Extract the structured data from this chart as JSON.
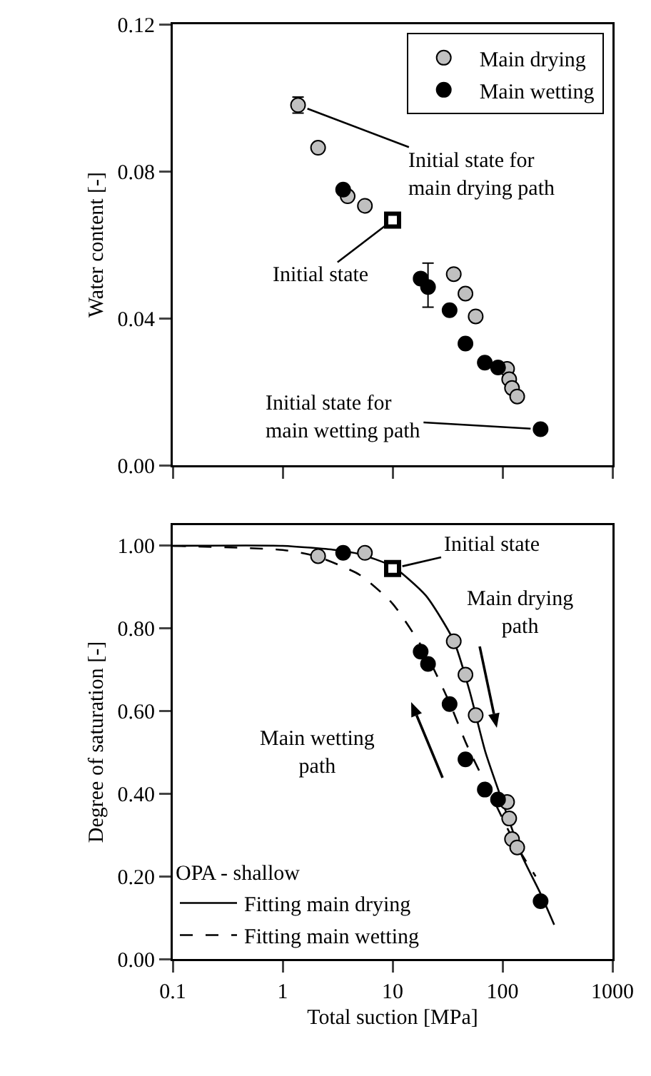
{
  "chart_data": [
    {
      "type": "scatter",
      "ylabel": "Water content [-]",
      "log": "x",
      "xlim": [
        0.1,
        1000
      ],
      "xticks": [
        0.1,
        1,
        10,
        100,
        1000
      ],
      "ylim": [
        0,
        0.12
      ],
      "yticks": [
        {
          "value": 0,
          "label": "0.00"
        },
        {
          "value": 0.04,
          "label": "0.04"
        },
        {
          "value": 0.08,
          "label": "0.08"
        },
        {
          "value": 0.12,
          "label": "0.12"
        }
      ],
      "tick_labels": "y",
      "grid": false,
      "legend": "top right",
      "marker": "circle",
      "series": [
        {
          "name": "Main drying",
          "color": "#c0c0c0",
          "x": [
            1.38,
            2.1,
            3.9,
            5.6,
            36,
            46,
            57,
            110,
            115,
            122,
            136
          ],
          "values": [
            0.098,
            0.0864,
            0.0732,
            0.0706,
            0.052,
            0.0467,
            0.0405,
            0.0262,
            0.0234,
            0.021,
            0.0187
          ],
          "errors": [
            0.0022,
            null,
            null,
            null,
            null,
            null,
            null,
            null,
            null,
            null,
            null
          ]
        },
        {
          "name": "Main wetting",
          "color": "#000000",
          "x": [
            3.55,
            18,
            21,
            33,
            46,
            69,
            91,
            222
          ],
          "values": [
            0.075,
            0.0508,
            0.0485,
            0.0422,
            0.0331,
            0.0279,
            0.0266,
            0.0098
          ],
          "errors": [
            null,
            null,
            [
              0.043,
              0.055
            ],
            null,
            null,
            null,
            null,
            null
          ]
        },
        {
          "color": "#000000",
          "marker": "square",
          "x": [
            10
          ],
          "values": [
            0.0667
          ]
        }
      ],
      "annotations": [
        {
          "text": "Initial state for\nmain drying path",
          "x": 1.38,
          "y": 0.098
        },
        {
          "text": "Initial state",
          "x": 10,
          "y": 0.0667
        },
        {
          "text": "Initial state for\nmain wetting path",
          "x": 222,
          "y": 0.0098
        }
      ]
    },
    {
      "type": "scatter",
      "xlabel": "Total suction [MPa]",
      "ylabel": "Degree of saturation [-]",
      "log": "x",
      "xlim": [
        0.1,
        1000
      ],
      "xticks": [
        0.1,
        1,
        10,
        100,
        1000
      ],
      "ylim": [
        0,
        1.05
      ],
      "yticks": [
        {
          "value": 0,
          "label": "0.00"
        },
        {
          "value": 0.2,
          "label": "0.20"
        },
        {
          "value": 0.4,
          "label": "0.40"
        },
        {
          "value": 0.6,
          "label": "0.60"
        },
        {
          "value": 0.8,
          "label": "0.80"
        },
        {
          "value": 1,
          "label": "1.00"
        }
      ],
      "grid": false,
      "legend": "bottom left",
      "legend_title": "OPA - shallow",
      "marker": "circle",
      "series": [
        {
          "color": "#c0c0c0",
          "x": [
            2.1,
            5.6,
            36,
            46,
            57,
            110,
            115,
            122,
            136
          ],
          "values": [
            0.975,
            0.983,
            0.769,
            0.688,
            0.59,
            0.38,
            0.34,
            0.29,
            0.27
          ]
        },
        {
          "color": "#000000",
          "x": [
            3.55,
            18,
            21,
            33,
            46,
            69,
            91,
            222
          ],
          "values": [
            0.983,
            0.744,
            0.714,
            0.617,
            0.483,
            0.41,
            0.386,
            0.14
          ]
        },
        {
          "color": "#000000",
          "marker": "square",
          "x": [
            10
          ],
          "values": [
            0.945
          ]
        },
        {
          "type": "line",
          "name": "Fitting main drying",
          "color": "#000000",
          "line_style": "solid",
          "marker": "none",
          "x": [
            0.1,
            1,
            3,
            5,
            10,
            20,
            36,
            50,
            70,
            100,
            150,
            220,
            295
          ],
          "values": [
            1.0,
            1.0,
            0.99,
            0.98,
            0.95,
            0.88,
            0.77,
            0.65,
            0.5,
            0.38,
            0.25,
            0.16,
            0.083
          ]
        },
        {
          "type": "line",
          "name": "Fitting main wetting",
          "color": "#000000",
          "line_style": "dashed",
          "marker": "none",
          "x": [
            0.1,
            1,
            2,
            5,
            10,
            20,
            33,
            47,
            86,
            130,
            200
          ],
          "values": [
            1.0,
            0.99,
            0.975,
            0.93,
            0.86,
            0.74,
            0.62,
            0.52,
            0.376,
            0.28,
            0.2
          ]
        }
      ],
      "annotations": [
        {
          "text": "Initial state",
          "x": 10,
          "y": 0.945
        },
        "Main drying\npath",
        "Main wetting\npath"
      ]
    }
  ]
}
